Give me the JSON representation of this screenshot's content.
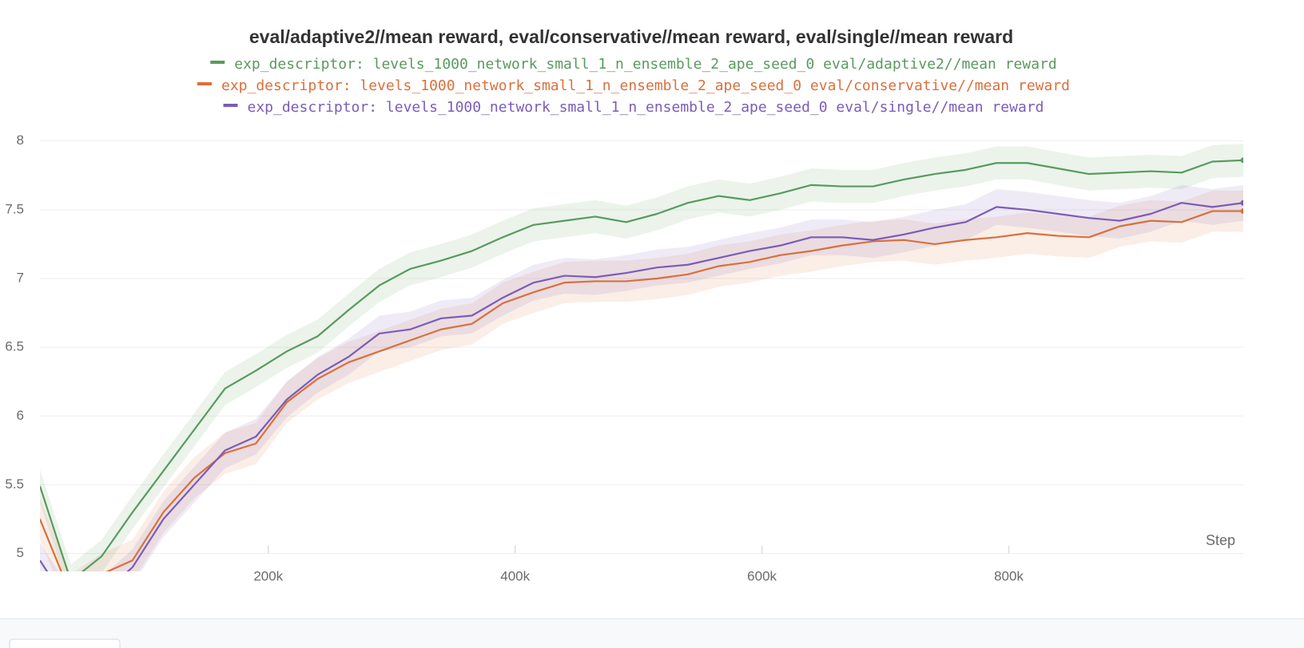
{
  "chart_data": {
    "type": "line",
    "title": "eval/adaptive2//mean reward, eval/conservative//mean reward, eval/single//mean reward",
    "x_label": "Step",
    "x": [
      15000,
      40000,
      65000,
      90000,
      115000,
      140000,
      165000,
      190000,
      215000,
      240000,
      265000,
      290000,
      315000,
      340000,
      365000,
      390000,
      415000,
      440000,
      465000,
      490000,
      515000,
      540000,
      565000,
      590000,
      615000,
      640000,
      665000,
      690000,
      715000,
      740000,
      765000,
      790000,
      815000,
      840000,
      865000,
      890000,
      915000,
      940000,
      965000,
      990000
    ],
    "series": [
      {
        "name": "exp_descriptor: levels_1000_network_small_1_n_ensemble_2_ape_seed_0 eval/adaptive2//mean reward",
        "color": "#5a9a5e",
        "band": 0.12,
        "values": [
          5.49,
          4.8,
          4.98,
          5.3,
          5.6,
          5.9,
          6.2,
          6.33,
          6.47,
          6.58,
          6.77,
          6.95,
          7.07,
          7.13,
          7.2,
          7.3,
          7.39,
          7.42,
          7.45,
          7.41,
          7.47,
          7.55,
          7.6,
          7.57,
          7.62,
          7.68,
          7.67,
          7.67,
          7.72,
          7.76,
          7.79,
          7.84,
          7.84,
          7.8,
          7.76,
          7.77,
          7.78,
          7.77,
          7.85,
          7.86
        ]
      },
      {
        "name": "exp_descriptor: levels_1000_network_small_1_n_ensemble_2_ape_seed_0 eval/conservative//mean reward",
        "color": "#d9703c",
        "band": 0.15,
        "values": [
          5.25,
          4.7,
          4.85,
          4.95,
          5.3,
          5.55,
          5.73,
          5.8,
          6.1,
          6.27,
          6.39,
          6.47,
          6.55,
          6.63,
          6.67,
          6.82,
          6.9,
          6.97,
          6.98,
          6.98,
          7.0,
          7.03,
          7.09,
          7.12,
          7.17,
          7.2,
          7.24,
          7.27,
          7.28,
          7.25,
          7.28,
          7.3,
          7.33,
          7.31,
          7.3,
          7.38,
          7.42,
          7.41,
          7.49,
          7.49
        ]
      },
      {
        "name": "exp_descriptor: levels_1000_network_small_1_n_ensemble_2_ape_seed_0 eval/single//mean reward",
        "color": "#7b5cb8",
        "band": 0.13,
        "values": [
          4.95,
          4.6,
          4.7,
          4.9,
          5.25,
          5.5,
          5.75,
          5.85,
          6.12,
          6.3,
          6.43,
          6.6,
          6.63,
          6.71,
          6.73,
          6.86,
          6.97,
          7.02,
          7.01,
          7.04,
          7.08,
          7.1,
          7.15,
          7.2,
          7.24,
          7.3,
          7.3,
          7.28,
          7.32,
          7.37,
          7.41,
          7.52,
          7.5,
          7.47,
          7.44,
          7.42,
          7.47,
          7.55,
          7.52,
          7.55
        ]
      }
    ],
    "xlim": [
      15000,
      990000
    ],
    "ylim": [
      4.87,
      8.12
    ],
    "xticks": [
      {
        "value": 200000,
        "label": "200k"
      },
      {
        "value": 400000,
        "label": "400k"
      },
      {
        "value": 600000,
        "label": "600k"
      },
      {
        "value": 800000,
        "label": "800k"
      }
    ],
    "yticks": [
      5,
      5.5,
      6,
      6.5,
      7,
      7.5,
      8
    ],
    "grid": true
  }
}
